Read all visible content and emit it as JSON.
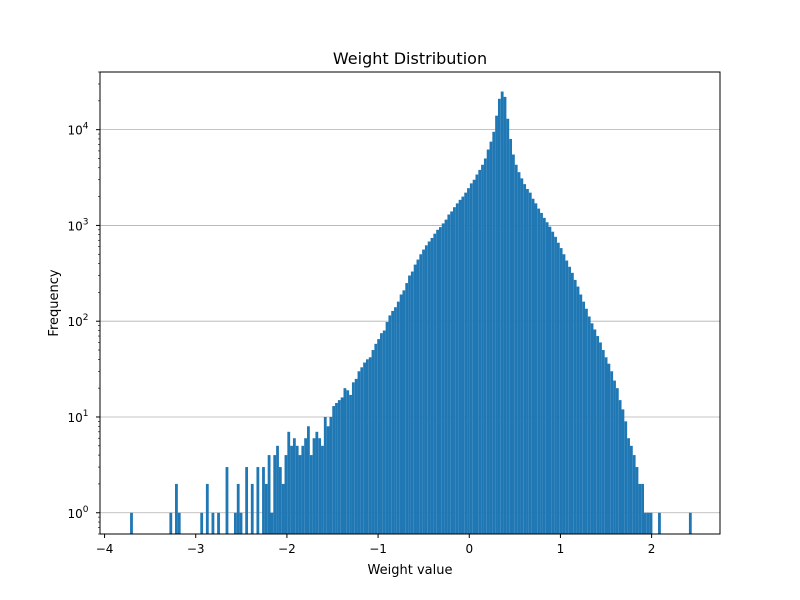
{
  "figure": {
    "title": "Weight Distribution",
    "xlabel": "Weight value",
    "ylabel": "Frequency"
  },
  "colors": {
    "bar": "#1f77b4",
    "grid": "#b0b0b0",
    "axis": "#000000",
    "background": "#ffffff"
  },
  "chart_data": {
    "type": "bar",
    "title": "Weight Distribution",
    "xlabel": "Weight value",
    "ylabel": "Frequency",
    "yscale": "log",
    "grid": "y-major",
    "legend": "none",
    "xlim": [
      -4.05,
      2.75
    ],
    "ylim": [
      0.6,
      40000
    ],
    "xticks": [
      -4,
      -3,
      -2,
      -1,
      0,
      1,
      2
    ],
    "xtick_labels": [
      "−4",
      "−3",
      "−2",
      "−1",
      "0",
      "1",
      "2"
    ],
    "yticks": [
      1,
      10,
      100,
      1000,
      10000
    ],
    "ytick_labels": [
      {
        "base": "10",
        "exp": "0"
      },
      {
        "base": "10",
        "exp": "1"
      },
      {
        "base": "10",
        "exp": "2"
      },
      {
        "base": "10",
        "exp": "3"
      },
      {
        "base": "10",
        "exp": "4"
      }
    ],
    "bin_edges": [
      -3.72,
      2.44
    ],
    "bin_count": 200,
    "values": [
      1,
      0,
      0,
      0,
      0,
      0,
      0,
      0,
      0,
      0,
      0,
      0,
      0,
      0,
      1,
      0,
      2,
      1,
      0,
      0,
      0,
      0,
      0,
      0,
      0,
      1,
      0,
      2,
      0,
      1,
      0,
      1,
      0,
      0,
      3,
      0,
      0,
      1,
      2,
      1,
      0,
      3,
      0,
      2,
      0,
      3,
      0,
      3,
      2,
      4,
      1,
      4,
      5,
      3,
      2,
      4,
      7,
      5,
      6,
      5,
      4,
      5,
      6,
      8,
      4,
      6,
      7,
      6,
      5,
      10,
      8,
      10,
      13,
      14,
      15,
      16,
      20,
      19,
      17,
      23,
      25,
      30,
      33,
      37,
      40,
      42,
      50,
      58,
      65,
      75,
      80,
      98,
      115,
      128,
      140,
      160,
      190,
      210,
      250,
      300,
      330,
      390,
      440,
      500,
      560,
      620,
      680,
      740,
      820,
      900,
      960,
      1050,
      1150,
      1300,
      1400,
      1550,
      1700,
      1850,
      2000,
      2200,
      2450,
      2750,
      3000,
      3400,
      3800,
      4300,
      5000,
      6200,
      7500,
      9500,
      14000,
      21000,
      25000,
      22000,
      13000,
      8000,
      5500,
      4300,
      3600,
      3100,
      2700,
      2400,
      2200,
      1900,
      1700,
      1500,
      1350,
      1200,
      1080,
      970,
      860,
      760,
      660,
      580,
      500,
      430,
      370,
      320,
      270,
      230,
      190,
      160,
      135,
      112,
      95,
      82,
      70,
      60,
      50,
      42,
      36,
      30,
      24,
      20,
      15,
      12,
      9,
      6,
      5,
      4,
      3,
      2,
      2,
      1,
      1,
      1,
      0,
      0,
      1,
      0,
      0,
      0,
      0,
      0,
      0,
      0,
      0,
      0,
      0,
      1
    ]
  }
}
